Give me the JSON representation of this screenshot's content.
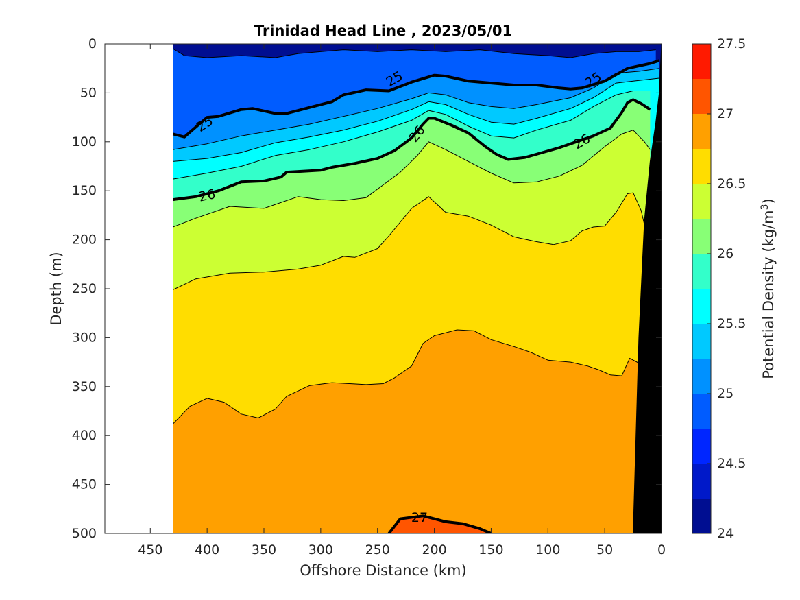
{
  "chart_data": {
    "type": "contourf",
    "title": "Trinidad Head Line , 2023/05/01",
    "xlabel": "Offshore Distance (km)",
    "ylabel": "Depth (m)",
    "xlim": [
      490,
      0
    ],
    "ylim": [
      0,
      500
    ],
    "x_reversed": true,
    "y_reversed": true,
    "xticks": [
      450,
      400,
      350,
      300,
      250,
      200,
      150,
      100,
      50,
      0
    ],
    "yticks": [
      0,
      50,
      100,
      150,
      200,
      250,
      300,
      350,
      400,
      450,
      500
    ],
    "data_extent_x": [
      430,
      0
    ],
    "colorbar": {
      "label": "Potential Density (kg/m",
      "label_superscript": "3",
      "label_suffix": ")",
      "range": [
        24,
        27.5
      ],
      "tick_values": [
        24,
        24.5,
        25,
        25.5,
        26,
        26.5,
        27,
        27.5
      ],
      "tick_labels": [
        "24",
        "24.5",
        "25",
        "25.5",
        "26",
        "26.5",
        "27",
        "27.5"
      ],
      "levels": [
        24,
        24.25,
        24.5,
        24.75,
        25,
        25.25,
        25.5,
        25.75,
        26,
        26.25,
        26.5,
        26.75,
        27,
        27.25,
        27.5
      ],
      "colors": [
        "#000e91",
        "#0019c9",
        "#0026ff",
        "#005cff",
        "#0091ff",
        "#00c9ff",
        "#00ffff",
        "#33ffca",
        "#88ff76",
        "#ccff33",
        "#ffdd00",
        "#ffa000",
        "#ff5500",
        "#ff1a00",
        "#c40000"
      ]
    },
    "isopycnals": [
      {
        "level": 24.75,
        "depth_m": [
          [
            430,
            5
          ],
          [
            420,
            12
          ],
          [
            400,
            14
          ],
          [
            370,
            12
          ],
          [
            340,
            14
          ],
          [
            320,
            10
          ],
          [
            300,
            8
          ],
          [
            280,
            6
          ],
          [
            250,
            8
          ],
          [
            220,
            6
          ],
          [
            190,
            8
          ],
          [
            160,
            6
          ],
          [
            130,
            10
          ],
          [
            100,
            12
          ],
          [
            80,
            14
          ],
          [
            60,
            10
          ],
          [
            40,
            8
          ],
          [
            20,
            8
          ],
          [
            5,
            6
          ]
        ]
      },
      {
        "level": 25,
        "depth_m": [
          [
            430,
            92
          ],
          [
            420,
            95
          ],
          [
            400,
            75
          ],
          [
            390,
            74
          ],
          [
            370,
            67
          ],
          [
            360,
            66
          ],
          [
            340,
            71
          ],
          [
            330,
            71
          ],
          [
            310,
            65
          ],
          [
            290,
            59
          ],
          [
            280,
            52
          ],
          [
            260,
            47
          ],
          [
            240,
            48
          ],
          [
            220,
            39
          ],
          [
            200,
            32
          ],
          [
            190,
            33
          ],
          [
            170,
            38
          ],
          [
            150,
            40
          ],
          [
            130,
            42
          ],
          [
            110,
            42
          ],
          [
            90,
            45
          ],
          [
            80,
            46
          ],
          [
            70,
            45
          ],
          [
            50,
            38
          ],
          [
            30,
            25
          ],
          [
            10,
            20
          ],
          [
            2,
            17
          ]
        ],
        "labels": [
          {
            "x": 402,
            "depth": 82,
            "rot": -33
          },
          {
            "x": 235,
            "depth": 36,
            "rot": -30
          },
          {
            "x": 60,
            "depth": 37,
            "rot": -33
          }
        ]
      },
      {
        "level": 25.25,
        "depth_m": [
          [
            430,
            108
          ],
          [
            400,
            102
          ],
          [
            370,
            94
          ],
          [
            340,
            88
          ],
          [
            310,
            82
          ],
          [
            280,
            74
          ],
          [
            250,
            66
          ],
          [
            220,
            56
          ],
          [
            205,
            50
          ],
          [
            190,
            52
          ],
          [
            170,
            60
          ],
          [
            150,
            64
          ],
          [
            130,
            66
          ],
          [
            110,
            62
          ],
          [
            80,
            55
          ],
          [
            60,
            45
          ],
          [
            40,
            30
          ],
          [
            20,
            28
          ],
          [
            2,
            25
          ]
        ]
      },
      {
        "level": 25.5,
        "depth_m": [
          [
            430,
            120
          ],
          [
            400,
            117
          ],
          [
            370,
            111
          ],
          [
            340,
            101
          ],
          [
            310,
            95
          ],
          [
            280,
            88
          ],
          [
            250,
            79
          ],
          [
            220,
            67
          ],
          [
            205,
            59
          ],
          [
            190,
            62
          ],
          [
            170,
            72
          ],
          [
            150,
            80
          ],
          [
            130,
            82
          ],
          [
            110,
            76
          ],
          [
            80,
            66
          ],
          [
            60,
            55
          ],
          [
            40,
            40
          ],
          [
            25,
            38
          ],
          [
            2,
            35
          ]
        ]
      },
      {
        "level": 25.75,
        "depth_m": [
          [
            430,
            138
          ],
          [
            400,
            132
          ],
          [
            370,
            125
          ],
          [
            340,
            114
          ],
          [
            310,
            108
          ],
          [
            280,
            100
          ],
          [
            250,
            90
          ],
          [
            220,
            78
          ],
          [
            205,
            68
          ],
          [
            190,
            72
          ],
          [
            170,
            84
          ],
          [
            150,
            94
          ],
          [
            130,
            96
          ],
          [
            110,
            88
          ],
          [
            80,
            78
          ],
          [
            60,
            64
          ],
          [
            40,
            52
          ],
          [
            25,
            48
          ],
          [
            10,
            48
          ]
        ]
      },
      {
        "level": 26,
        "depth_m": [
          [
            430,
            159
          ],
          [
            410,
            156
          ],
          [
            390,
            150
          ],
          [
            370,
            141
          ],
          [
            350,
            140
          ],
          [
            335,
            136
          ],
          [
            330,
            131
          ],
          [
            300,
            129
          ],
          [
            290,
            126
          ],
          [
            270,
            122
          ],
          [
            250,
            117
          ],
          [
            235,
            109
          ],
          [
            220,
            96
          ],
          [
            210,
            82
          ],
          [
            205,
            76
          ],
          [
            200,
            76
          ],
          [
            185,
            83
          ],
          [
            170,
            91
          ],
          [
            155,
            105
          ],
          [
            145,
            113
          ],
          [
            135,
            118
          ],
          [
            120,
            116
          ],
          [
            105,
            111
          ],
          [
            90,
            106
          ],
          [
            75,
            100
          ],
          [
            60,
            94
          ],
          [
            45,
            86
          ],
          [
            35,
            70
          ],
          [
            30,
            60
          ],
          [
            25,
            57
          ],
          [
            18,
            61
          ],
          [
            10,
            67
          ]
        ],
        "labels": [
          {
            "x": 400,
            "depth": 155,
            "rot": -12
          },
          {
            "x": 215,
            "depth": 92,
            "rot": -52
          },
          {
            "x": 70,
            "depth": 100,
            "rot": -30
          }
        ]
      },
      {
        "level": 26.25,
        "depth_m": [
          [
            430,
            187
          ],
          [
            410,
            178
          ],
          [
            380,
            166
          ],
          [
            350,
            168
          ],
          [
            320,
            156
          ],
          [
            300,
            159
          ],
          [
            280,
            160
          ],
          [
            260,
            157
          ],
          [
            245,
            144
          ],
          [
            230,
            131
          ],
          [
            215,
            114
          ],
          [
            205,
            100
          ],
          [
            190,
            108
          ],
          [
            170,
            120
          ],
          [
            150,
            132
          ],
          [
            130,
            142
          ],
          [
            110,
            141
          ],
          [
            90,
            135
          ],
          [
            70,
            124
          ],
          [
            50,
            105
          ],
          [
            35,
            92
          ],
          [
            25,
            88
          ],
          [
            15,
            100
          ],
          [
            10,
            108
          ]
        ]
      },
      {
        "level": 26.5,
        "depth_m": [
          [
            430,
            251
          ],
          [
            410,
            240
          ],
          [
            380,
            234
          ],
          [
            350,
            233
          ],
          [
            320,
            230
          ],
          [
            300,
            226
          ],
          [
            280,
            217
          ],
          [
            270,
            218
          ],
          [
            250,
            209
          ],
          [
            240,
            196
          ],
          [
            220,
            168
          ],
          [
            205,
            156
          ],
          [
            190,
            172
          ],
          [
            170,
            176
          ],
          [
            150,
            185
          ],
          [
            130,
            197
          ],
          [
            110,
            202
          ],
          [
            95,
            205
          ],
          [
            80,
            201
          ],
          [
            70,
            191
          ],
          [
            60,
            187
          ],
          [
            50,
            186
          ],
          [
            40,
            172
          ],
          [
            30,
            153
          ],
          [
            25,
            152
          ],
          [
            18,
            170
          ],
          [
            12,
            200
          ]
        ]
      },
      {
        "level": 26.75,
        "depth_m": [
          [
            430,
            388
          ],
          [
            415,
            370
          ],
          [
            400,
            362
          ],
          [
            385,
            366
          ],
          [
            370,
            378
          ],
          [
            355,
            382
          ],
          [
            340,
            373
          ],
          [
            330,
            360
          ],
          [
            310,
            349
          ],
          [
            290,
            346
          ],
          [
            260,
            348
          ],
          [
            245,
            347
          ],
          [
            235,
            341
          ],
          [
            220,
            329
          ],
          [
            210,
            306
          ],
          [
            200,
            298
          ],
          [
            180,
            292
          ],
          [
            165,
            293
          ],
          [
            150,
            302
          ],
          [
            130,
            309
          ],
          [
            115,
            315
          ],
          [
            100,
            323
          ],
          [
            80,
            325
          ],
          [
            65,
            329
          ],
          [
            55,
            333
          ],
          [
            45,
            338
          ],
          [
            35,
            339
          ],
          [
            28,
            321
          ],
          [
            20,
            326
          ],
          [
            15,
            345
          ],
          [
            8,
            378
          ]
        ]
      },
      {
        "level": 27,
        "depth_m": [
          [
            240,
            500
          ],
          [
            230,
            485
          ],
          [
            210,
            482
          ],
          [
            190,
            488
          ],
          [
            175,
            490
          ],
          [
            160,
            495
          ],
          [
            150,
            500
          ]
        ],
        "labels": [
          {
            "x": 213,
            "depth": 484,
            "rot": 0
          }
        ]
      }
    ],
    "bottom_topography": [
      [
        25,
        500
      ],
      [
        20,
        300
      ],
      [
        15,
        180
      ],
      [
        10,
        120
      ],
      [
        5,
        80
      ],
      [
        2,
        50
      ],
      [
        0,
        0
      ]
    ]
  }
}
